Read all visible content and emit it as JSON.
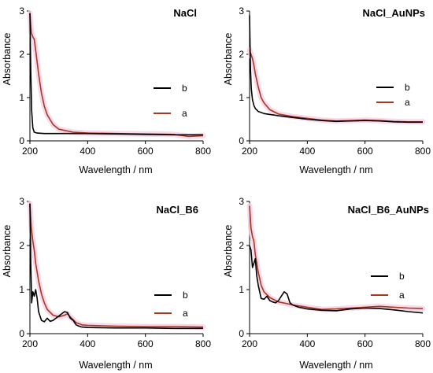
{
  "colors": {
    "a": "#a4391f",
    "b": "#000000",
    "band": "#f7cfe6"
  },
  "chart_data": [
    {
      "type": "line",
      "title": "NaCl",
      "xlabel": "Wavelength / nm",
      "ylabel": "Absorbance",
      "xlim": [
        200,
        800
      ],
      "ylim": [
        0,
        3
      ],
      "xticks": [
        200,
        400,
        600,
        800
      ],
      "yticks": [
        0,
        1,
        2,
        3
      ],
      "legend": "right",
      "series": [
        {
          "name": "b",
          "x": [
            200,
            203,
            206,
            210,
            215,
            225,
            250,
            300,
            400,
            500,
            600,
            700,
            800
          ],
          "y": [
            2.95,
            1.6,
            0.7,
            0.3,
            0.2,
            0.18,
            0.17,
            0.17,
            0.17,
            0.16,
            0.15,
            0.14,
            0.14
          ]
        },
        {
          "name": "a",
          "x": [
            200,
            205,
            210,
            215,
            220,
            230,
            240,
            250,
            260,
            280,
            300,
            350,
            400,
            500,
            600,
            700,
            750,
            800
          ],
          "y": [
            2.95,
            2.5,
            2.4,
            2.35,
            2.1,
            1.55,
            1.1,
            0.8,
            0.6,
            0.38,
            0.27,
            0.2,
            0.18,
            0.17,
            0.16,
            0.15,
            0.1,
            0.12
          ]
        }
      ]
    },
    {
      "type": "line",
      "title": "NaCl_AuNPs",
      "xlabel": "Wavelength / nm",
      "ylabel": "Absorbance",
      "xlim": [
        200,
        800
      ],
      "ylim": [
        0,
        3
      ],
      "xticks": [
        200,
        400,
        600,
        800
      ],
      "yticks": [
        0,
        1,
        2,
        3
      ],
      "legend": "right",
      "series": [
        {
          "name": "b",
          "x": [
            200,
            203,
            206,
            210,
            215,
            220,
            230,
            250,
            300,
            350,
            400,
            450,
            500,
            550,
            600,
            650,
            700,
            750,
            800
          ],
          "y": [
            2.9,
            1.7,
            1.2,
            0.95,
            0.82,
            0.75,
            0.68,
            0.63,
            0.58,
            0.54,
            0.5,
            0.47,
            0.45,
            0.46,
            0.47,
            0.46,
            0.44,
            0.43,
            0.43
          ]
        },
        {
          "name": "a",
          "x": [
            200,
            205,
            210,
            215,
            220,
            230,
            240,
            250,
            270,
            300,
            350,
            400,
            450,
            500,
            550,
            600,
            650,
            700,
            750,
            800
          ],
          "y": [
            2.1,
            2.0,
            1.9,
            1.75,
            1.55,
            1.25,
            1.0,
            0.88,
            0.72,
            0.62,
            0.56,
            0.52,
            0.48,
            0.46,
            0.47,
            0.48,
            0.47,
            0.45,
            0.44,
            0.44
          ]
        }
      ]
    },
    {
      "type": "line",
      "title": "NaCl_B6",
      "xlabel": "Wavelength / nm",
      "ylabel": "Absorbance",
      "xlim": [
        200,
        800
      ],
      "ylim": [
        0,
        3
      ],
      "xticks": [
        200,
        400,
        600,
        800
      ],
      "yticks": [
        0,
        1,
        2,
        3
      ],
      "legend": "right",
      "series": [
        {
          "name": "b",
          "x": [
            200,
            203,
            206,
            210,
            215,
            220,
            225,
            230,
            240,
            250,
            260,
            270,
            280,
            290,
            300,
            310,
            320,
            330,
            340,
            350,
            360,
            370,
            380,
            400,
            500,
            600,
            700,
            800
          ],
          "y": [
            2.95,
            1.6,
            0.7,
            0.95,
            0.85,
            1.0,
            0.8,
            0.5,
            0.3,
            0.27,
            0.35,
            0.28,
            0.3,
            0.35,
            0.4,
            0.45,
            0.5,
            0.48,
            0.35,
            0.3,
            0.2,
            0.17,
            0.15,
            0.14,
            0.13,
            0.13,
            0.12,
            0.12
          ]
        },
        {
          "name": "a",
          "x": [
            200,
            205,
            210,
            215,
            220,
            230,
            240,
            250,
            260,
            280,
            300,
            320,
            330,
            340,
            360,
            380,
            400,
            500,
            600,
            700,
            800
          ],
          "y": [
            2.95,
            2.4,
            2.1,
            1.9,
            1.6,
            1.2,
            0.9,
            0.7,
            0.55,
            0.42,
            0.38,
            0.42,
            0.45,
            0.38,
            0.25,
            0.2,
            0.19,
            0.17,
            0.16,
            0.16,
            0.15
          ]
        }
      ]
    },
    {
      "type": "line",
      "title": "NaCl_B6_AuNPs",
      "xlabel": "Wavelength / nm",
      "ylabel": "Absorbance",
      "xlim": [
        200,
        800
      ],
      "ylim": [
        0,
        3
      ],
      "xticks": [
        200,
        400,
        600,
        800
      ],
      "yticks": [
        0,
        1,
        2,
        3
      ],
      "legend": "right",
      "series": [
        {
          "name": "b",
          "x": [
            200,
            205,
            210,
            215,
            220,
            225,
            230,
            240,
            250,
            260,
            270,
            280,
            290,
            300,
            310,
            320,
            330,
            340,
            350,
            370,
            400,
            450,
            500,
            550,
            600,
            650,
            700,
            750,
            800
          ],
          "y": [
            2.0,
            1.9,
            1.5,
            1.6,
            1.7,
            1.3,
            1.1,
            0.8,
            0.78,
            0.85,
            0.75,
            0.72,
            0.7,
            0.75,
            0.85,
            0.95,
            0.9,
            0.7,
            0.65,
            0.6,
            0.56,
            0.53,
            0.52,
            0.56,
            0.58,
            0.57,
            0.54,
            0.5,
            0.47
          ]
        },
        {
          "name": "a",
          "x": [
            200,
            205,
            210,
            215,
            220,
            230,
            240,
            250,
            270,
            300,
            330,
            350,
            400,
            450,
            500,
            550,
            600,
            650,
            700,
            750,
            800
          ],
          "y": [
            2.9,
            2.4,
            2.2,
            2.1,
            1.8,
            1.4,
            1.1,
            0.95,
            0.82,
            0.72,
            0.68,
            0.65,
            0.6,
            0.55,
            0.56,
            0.58,
            0.6,
            0.62,
            0.6,
            0.58,
            0.57
          ]
        }
      ]
    }
  ]
}
